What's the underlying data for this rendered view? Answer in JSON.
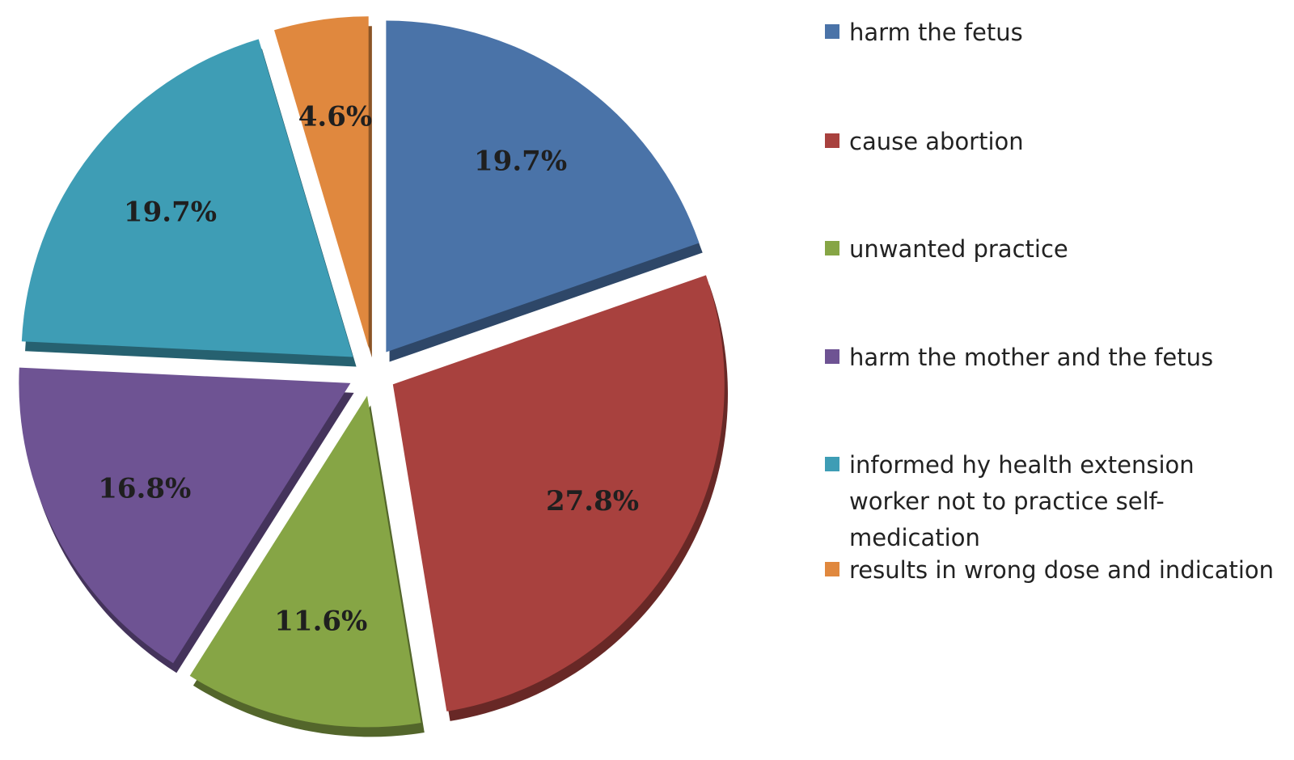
{
  "chart_data": {
    "type": "pie",
    "title": "",
    "exploded": true,
    "three_d": true,
    "legend_position": "right",
    "series": [
      {
        "slices": [
          {
            "label": "harm the fetus",
            "value": 19.7,
            "display": "19.7%",
            "color": "#4A73A8"
          },
          {
            "label": "cause abortion",
            "value": 27.8,
            "display": "27.8%",
            "color": "#A8413E"
          },
          {
            "label": "unwanted practice",
            "value": 11.6,
            "display": "11.6%",
            "color": "#86A545"
          },
          {
            "label": "harm the mother and the fetus",
            "value": 16.8,
            "display": "16.8%",
            "color": "#6E5393"
          },
          {
            "label": "informed hy health extension worker not to practice self-medication",
            "legend_lines": [
              "informed hy health extension",
              "worker not to practice self-",
              "medication"
            ],
            "value": 19.7,
            "display": "19.7%",
            "color": "#3E9DB5"
          },
          {
            "label": "results in wrong dose and indication",
            "value": 4.6,
            "display": "4.6%",
            "color": "#E0883E"
          }
        ]
      }
    ]
  }
}
